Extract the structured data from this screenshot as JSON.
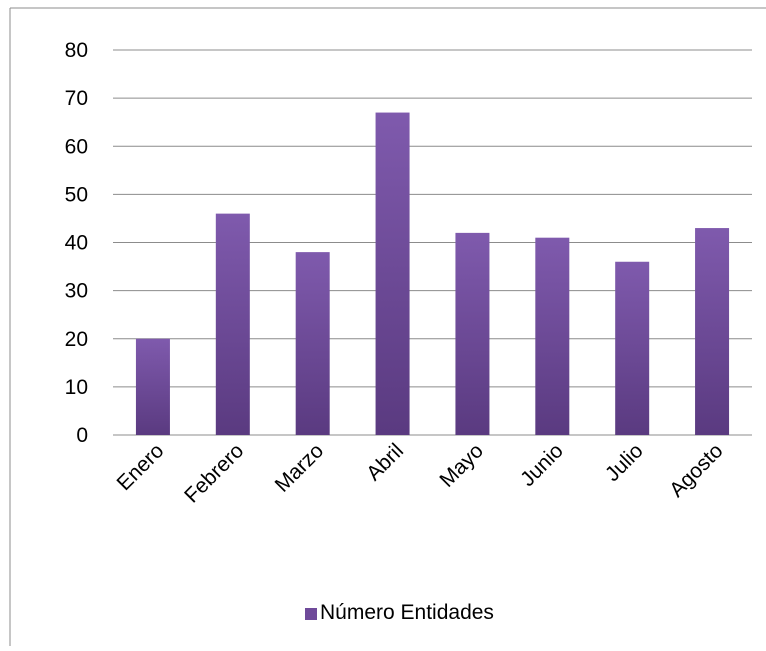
{
  "chart_data": {
    "type": "bar",
    "categories": [
      "Enero",
      "Febrero",
      "Marzo",
      "Abril",
      "Mayo",
      "Junio",
      "Julio",
      "Agosto"
    ],
    "series": [
      {
        "name": "Número Entidades",
        "values": [
          20,
          46,
          38,
          67,
          42,
          41,
          36,
          43
        ],
        "color": "#6f4a9a"
      }
    ],
    "ylim": [
      0,
      80
    ],
    "yticks": [
      0,
      10,
      20,
      30,
      40,
      50,
      60,
      70,
      80
    ],
    "grid": true,
    "legend_position": "bottom",
    "colors": {
      "bar_top": "#7f5aad",
      "bar_bottom": "#5a3a80",
      "grid": "#8c8c8c",
      "text": "#000000"
    }
  }
}
